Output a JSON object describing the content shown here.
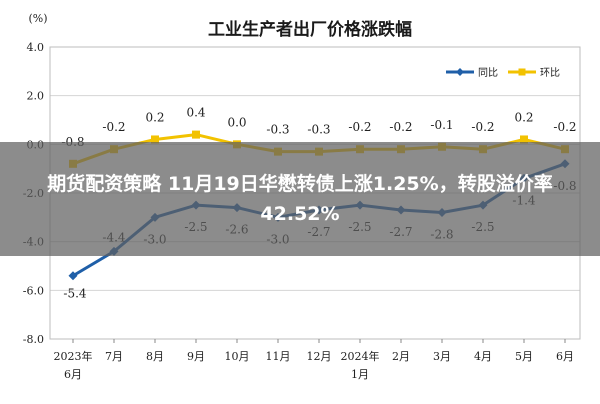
{
  "banner": {
    "text": "期货配资策略 11月19日华懋转债上涨1.25%，转股溢价率42.52%"
  },
  "chart_data": {
    "type": "line",
    "title": "工业生产者出厂价格涨跌幅",
    "ylabel": "(%)",
    "xlabel": "",
    "ylim": [
      -8.0,
      4.0
    ],
    "yticks": [
      "4.0",
      "2.0",
      "0.0",
      "-2.0",
      "-4.0",
      "-6.0",
      "-8.0"
    ],
    "categories": [
      [
        "2023年",
        "6月"
      ],
      [
        "7月"
      ],
      [
        "8月"
      ],
      [
        "9月"
      ],
      [
        "10月"
      ],
      [
        "11月"
      ],
      [
        "12月"
      ],
      [
        "2024年",
        "1月"
      ],
      [
        "2月"
      ],
      [
        "3月"
      ],
      [
        "4月"
      ],
      [
        "5月"
      ],
      [
        "6月"
      ]
    ],
    "legend_position": "top-right",
    "grid": true,
    "series": [
      {
        "name": "同比",
        "color": "#1f5fa8",
        "values": [
          -5.4,
          -4.4,
          -3.0,
          -2.5,
          -2.6,
          -3.0,
          -2.7,
          -2.5,
          -2.7,
          -2.8,
          -2.5,
          -1.4,
          -0.8
        ],
        "labels": [
          "-5.4",
          "-4.4",
          "-3.0",
          "-2.5",
          "-2.6",
          "-3.0",
          "-2.7",
          "-2.5",
          "-2.7",
          "-2.8",
          "-2.5",
          "-1.4",
          "-0.8"
        ]
      },
      {
        "name": "环比",
        "color": "#f2c200",
        "values": [
          -0.8,
          -0.2,
          0.2,
          0.4,
          0.0,
          -0.3,
          -0.3,
          -0.2,
          -0.2,
          -0.1,
          -0.2,
          0.2,
          -0.2
        ],
        "labels": [
          "-0.8",
          "-0.2",
          "0.2",
          "0.4",
          "0.0",
          "-0.3",
          "-0.3",
          "-0.2",
          "-0.2",
          "-0.1",
          "-0.2",
          "0.2",
          "-0.2"
        ]
      }
    ]
  }
}
